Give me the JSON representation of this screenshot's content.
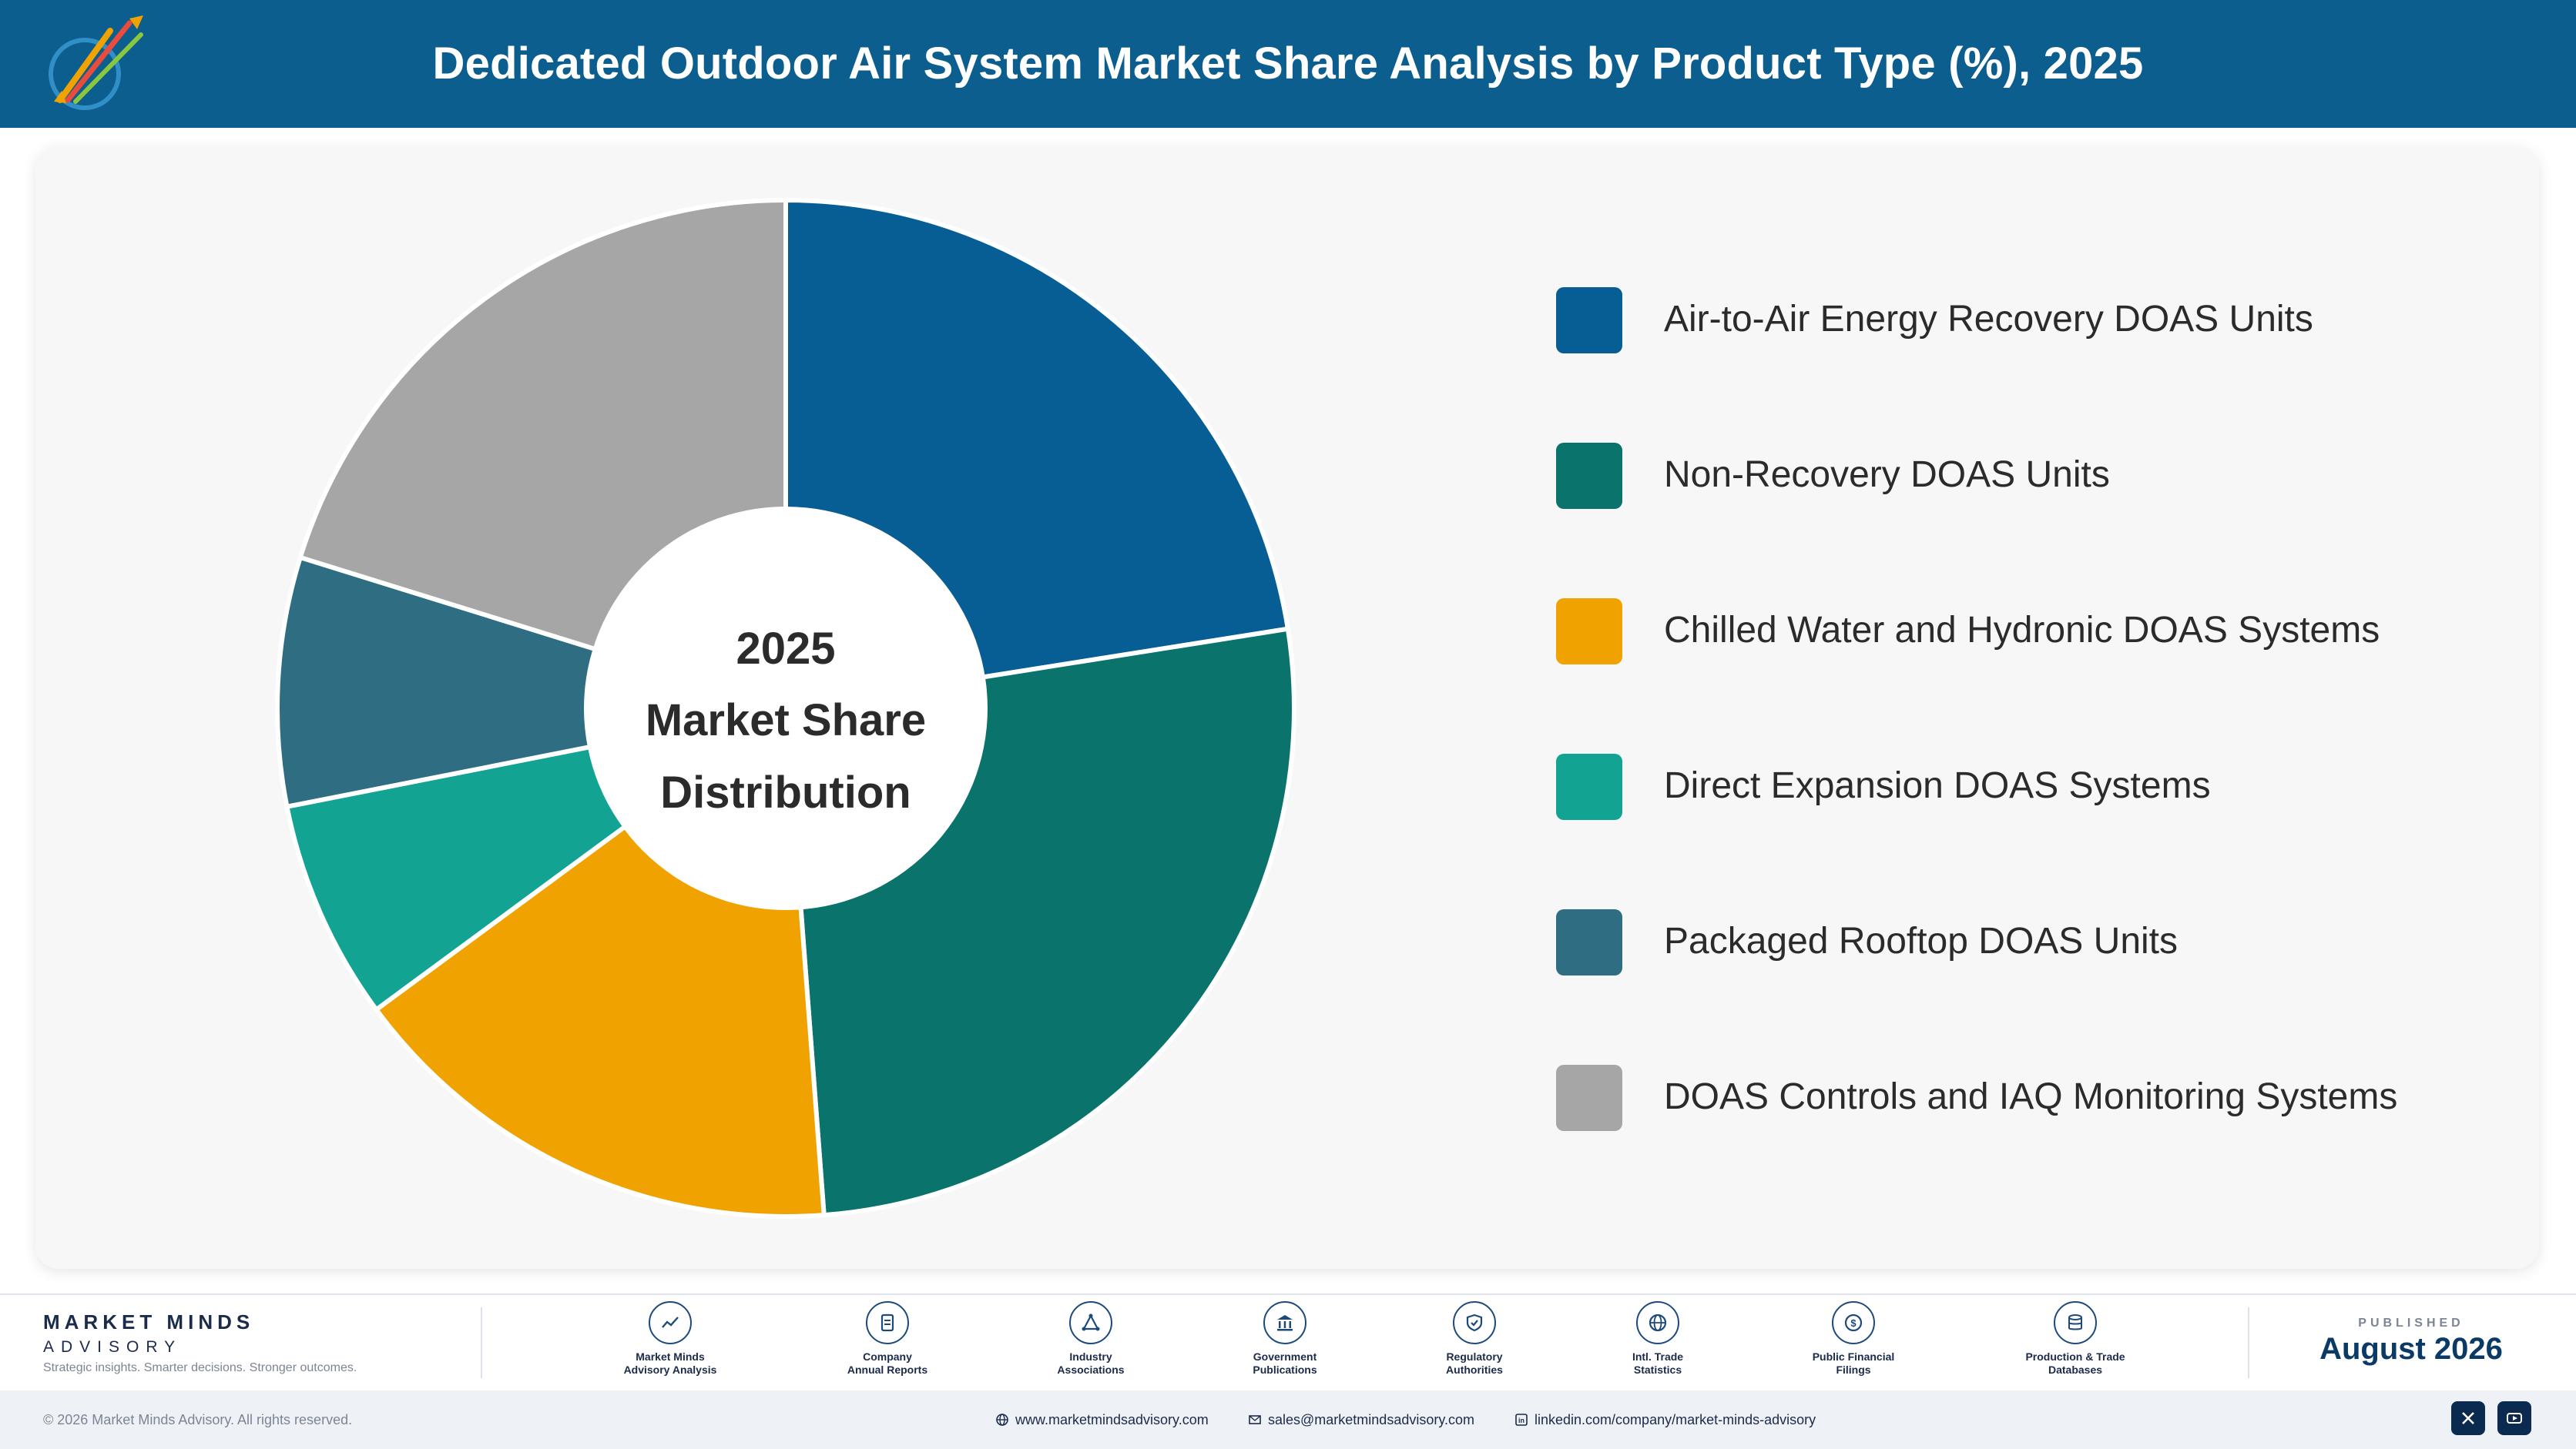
{
  "header": {
    "title": "Dedicated Outdoor Air System Market Share Analysis by Product Type (%), 2025",
    "logo_icon": "market-minds-logo-icon"
  },
  "chart_data": {
    "type": "pie",
    "title": "Dedicated Outdoor Air System Market Share Analysis by Product Type (%), 2025",
    "center_label": [
      "2025",
      "Market Share",
      "Distribution"
    ],
    "legend_position": "right",
    "categories": [
      "Air-to-Air Energy Recovery DOAS Units",
      "Non-Recovery DOAS Units",
      "Chilled Water and Hydronic DOAS Systems",
      "Direct Expansion DOAS Systems",
      "Packaged Rooftop DOAS Units",
      "DOAS Controls and IAQ Monitoring Systems"
    ],
    "values": [
      22.5,
      26.3,
      16.1,
      7.0,
      7.9,
      20.2
    ],
    "colors": [
      "#075e94",
      "#0a736c",
      "#f0a300",
      "#12a392",
      "#2e6d82",
      "#a6a6a6"
    ]
  },
  "footer": {
    "brand_name": "MARKET MINDS",
    "brand_sub": "ADVISORY",
    "brand_tagline": "Strategic insights. Smarter decisions. Stronger outcomes.",
    "sources": [
      {
        "line1": "Market Minds",
        "line2": "Advisory Analysis",
        "icon": "trend-chart-icon"
      },
      {
        "line1": "Company",
        "line2": "Annual Reports",
        "icon": "document-icon"
      },
      {
        "line1": "Industry",
        "line2": "Associations",
        "icon": "network-icon"
      },
      {
        "line1": "Government",
        "line2": "Publications",
        "icon": "government-building-icon"
      },
      {
        "line1": "Regulatory",
        "line2": "Authorities",
        "icon": "shield-check-icon"
      },
      {
        "line1": "Intl. Trade",
        "line2": "Statistics",
        "icon": "globe-icon"
      },
      {
        "line1": "Public Financial",
        "line2": "Filings",
        "icon": "dollar-coin-icon"
      },
      {
        "line1": "Production & Trade",
        "line2": "Databases",
        "icon": "database-icon"
      }
    ],
    "published_label": "PUBLISHED",
    "published_date": "August 2026",
    "copyright": "© 2026 Market Minds Advisory. All rights reserved.",
    "website": "www.marketmindsadvisory.com",
    "email": "sales@marketmindsadvisory.com",
    "linkedin": "linkedin.com/company/market-minds-advisory",
    "social_icons": [
      "x-icon",
      "youtube-icon"
    ]
  }
}
